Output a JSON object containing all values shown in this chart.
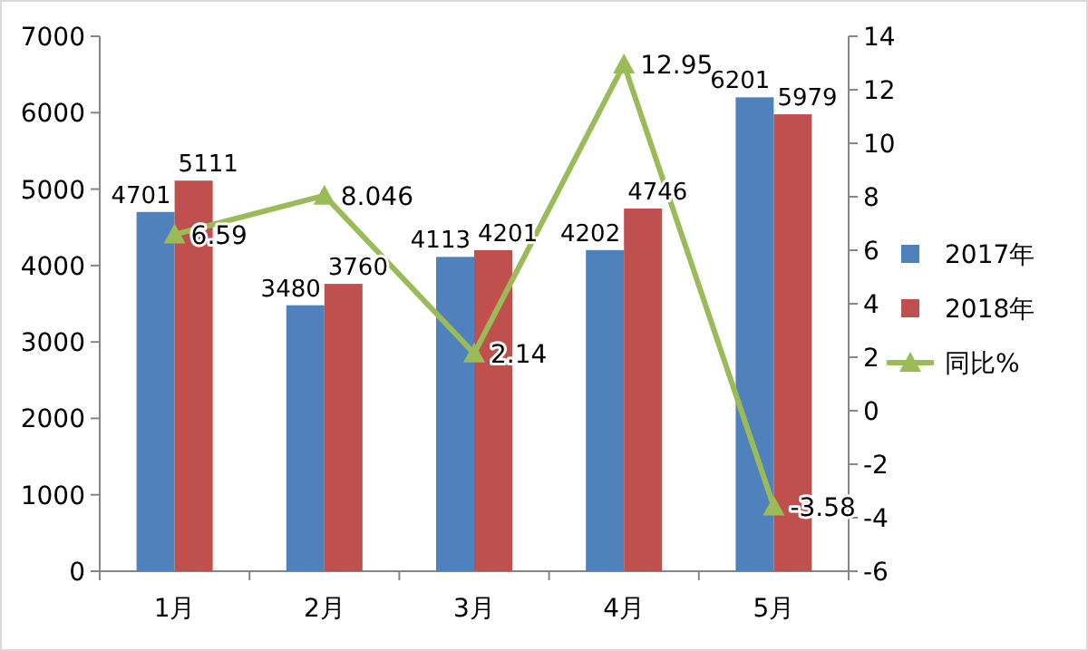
{
  "chart_data": {
    "type": "bar",
    "categories": [
      "1月",
      "2月",
      "3月",
      "4月",
      "5月"
    ],
    "series": [
      {
        "name": "2017年",
        "color": "#4f81bd",
        "values": [
          4701,
          3480,
          4113,
          4202,
          6201
        ]
      },
      {
        "name": "2018年",
        "color": "#c0504d",
        "values": [
          5111,
          3760,
          4201,
          4746,
          5979
        ]
      },
      {
        "name": "同比%",
        "type": "line",
        "axis": "y2",
        "color": "#9bbb59",
        "marker": "triangle",
        "values": [
          6.59,
          8.046,
          2.14,
          12.95,
          -3.58
        ]
      }
    ],
    "ylim": [
      0,
      7000
    ],
    "yticks": [
      0,
      1000,
      2000,
      3000,
      4000,
      5000,
      6000,
      7000
    ],
    "y2lim": [
      -6,
      14
    ],
    "y2ticks": [
      -6,
      -4,
      -2,
      0,
      2,
      4,
      6,
      8,
      10,
      12,
      14
    ],
    "data_labels": true,
    "legend": "right"
  }
}
